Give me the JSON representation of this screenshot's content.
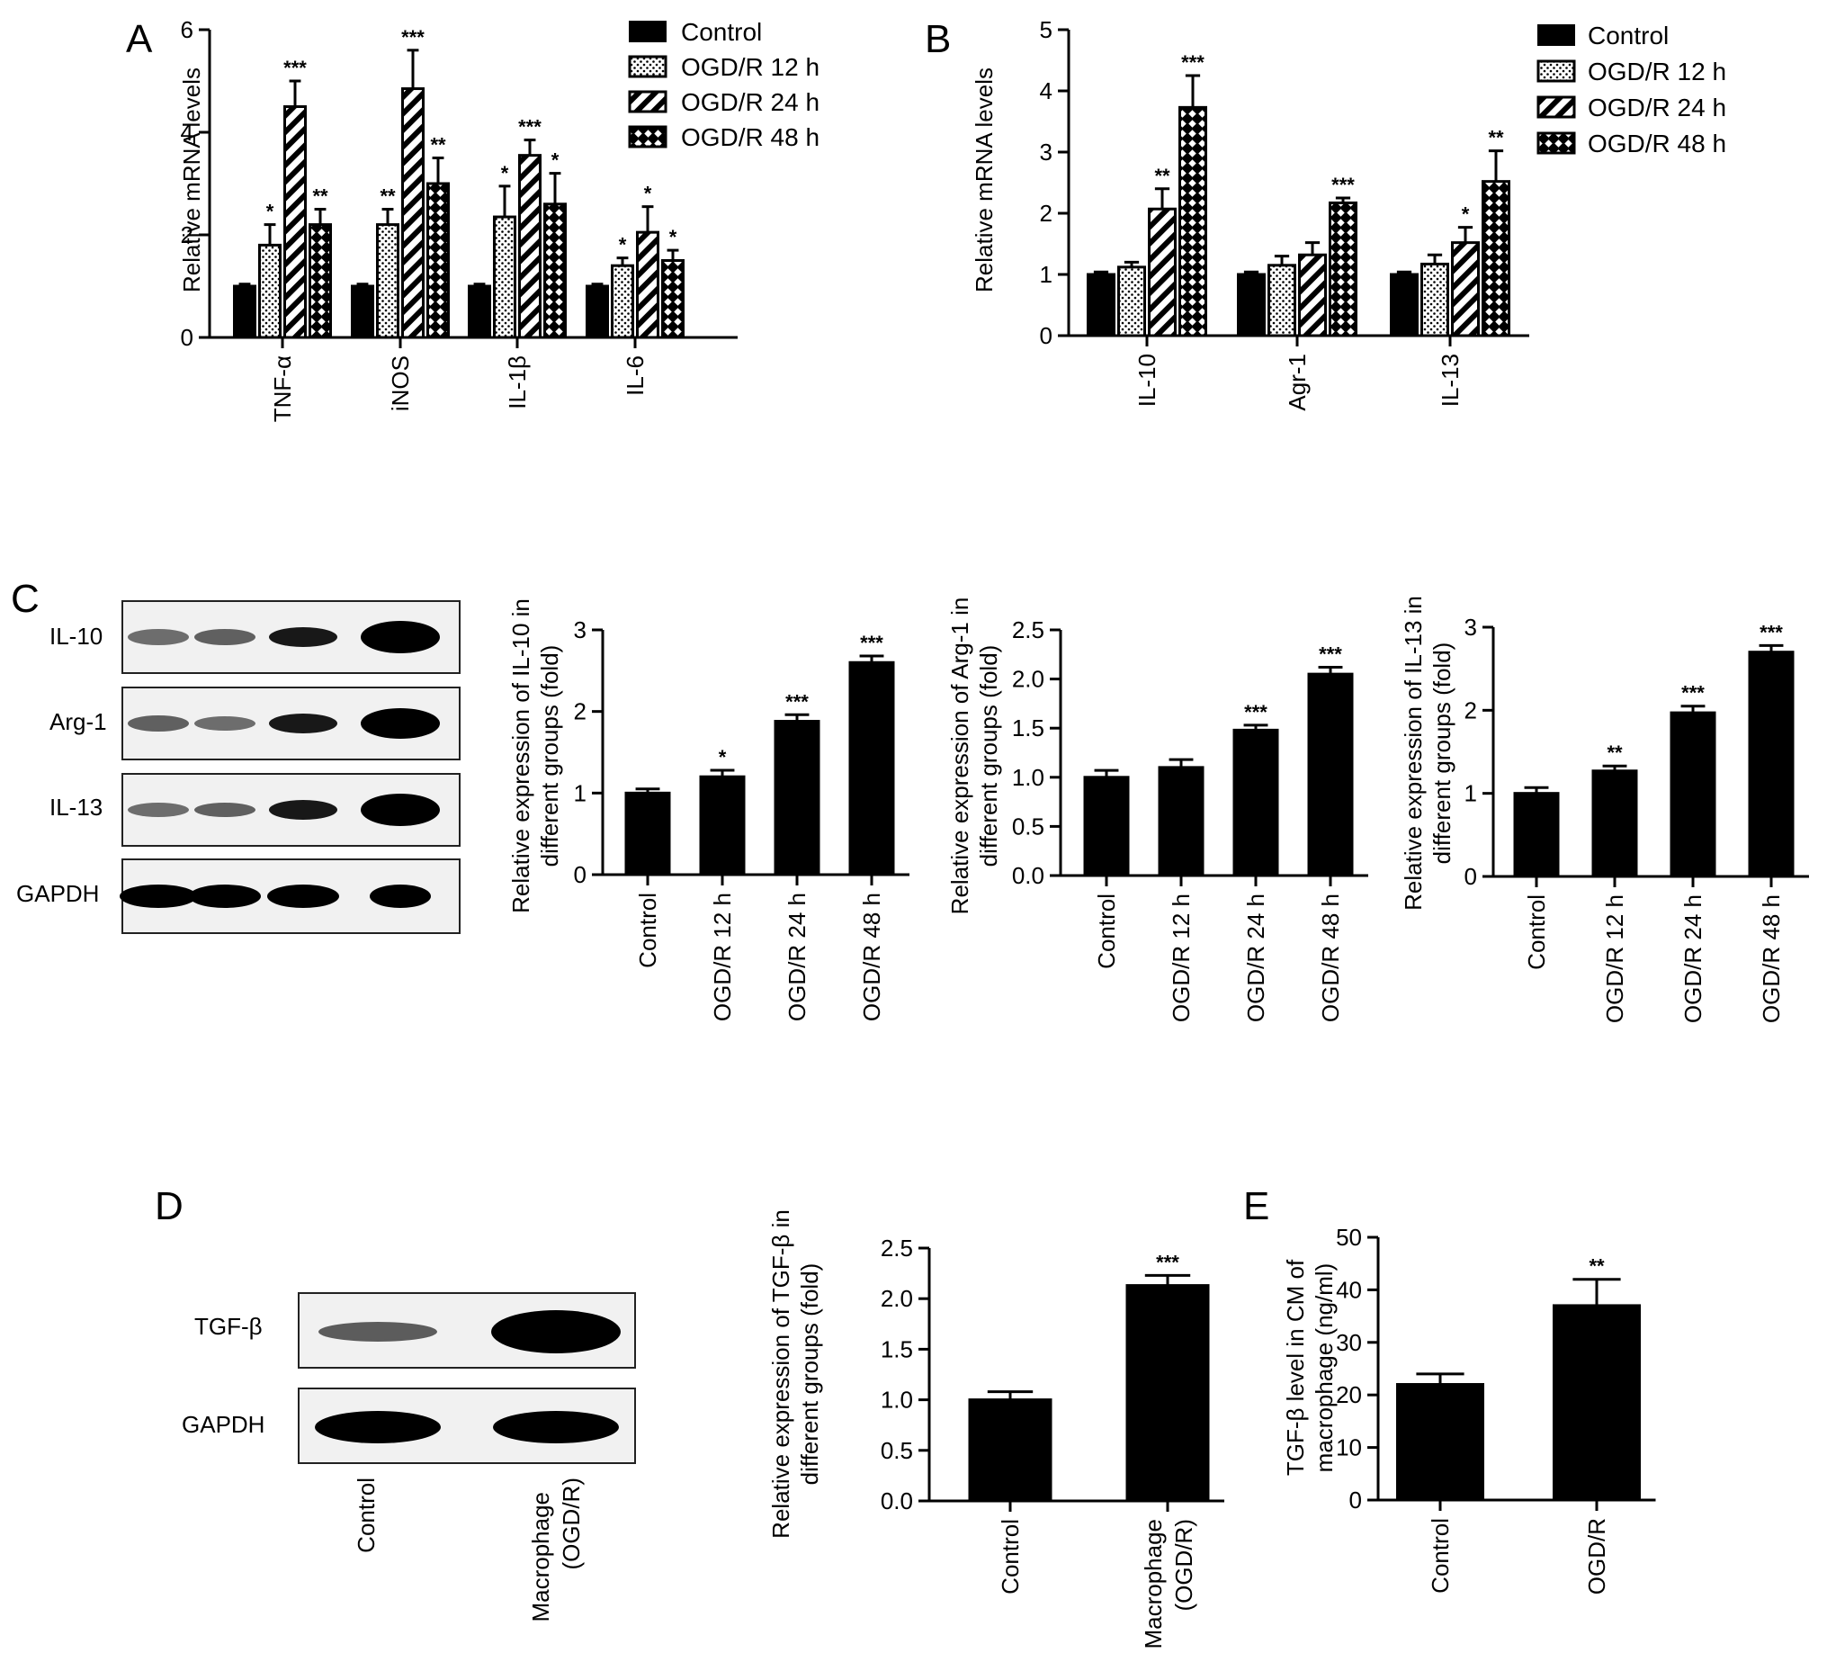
{
  "panel_labels": [
    "A",
    "B",
    "C",
    "D",
    "E"
  ],
  "legend": [
    "Control",
    "OGD/R 12 h",
    "OGD/R 24 h",
    "OGD/R 48 h"
  ],
  "blots": {
    "C": {
      "rows": [
        "IL-10",
        "Arg-1",
        "IL-13",
        "GAPDH"
      ]
    },
    "D": {
      "rows": [
        "TGF-β",
        "GAPDH"
      ],
      "lanes": [
        "Control",
        "Macrophage\n(OGD/R)"
      ]
    }
  },
  "chart_data": [
    {
      "id": "A",
      "type": "bar",
      "ylabel": "Relative mRNA levels",
      "xlabel": "",
      "ylim": [
        0,
        6
      ],
      "yticks": [
        0,
        2,
        4,
        6
      ],
      "categories": [
        "TNF-α",
        "iNOS",
        "IL-1β",
        "IL-6"
      ],
      "series": [
        {
          "name": "Control",
          "values": [
            1.0,
            1.0,
            1.0,
            1.0
          ],
          "errors": [
            0.04,
            0.04,
            0.04,
            0.04
          ],
          "sig": [
            "",
            "",
            "",
            ""
          ]
        },
        {
          "name": "OGD/R 12 h",
          "values": [
            1.8,
            2.2,
            2.35,
            1.4
          ],
          "errors": [
            0.4,
            0.3,
            0.6,
            0.15
          ],
          "sig": [
            "*",
            "**",
            "*",
            "*"
          ]
        },
        {
          "name": "OGD/R 24 h",
          "values": [
            4.5,
            4.85,
            3.55,
            2.05
          ],
          "errors": [
            0.5,
            0.75,
            0.3,
            0.5
          ],
          "sig": [
            "***",
            "***",
            "***",
            "*"
          ]
        },
        {
          "name": "OGD/R 48 h",
          "values": [
            2.2,
            3.0,
            2.6,
            1.5
          ],
          "errors": [
            0.3,
            0.5,
            0.6,
            0.2
          ],
          "sig": [
            "**",
            "**",
            "*",
            "*"
          ]
        }
      ]
    },
    {
      "id": "B",
      "type": "bar",
      "ylabel": "Relative mRNA levels",
      "xlabel": "",
      "ylim": [
        0,
        5
      ],
      "yticks": [
        0,
        1,
        2,
        3,
        4,
        5
      ],
      "categories": [
        "IL-10",
        "Agr-1",
        "IL-13"
      ],
      "series": [
        {
          "name": "Control",
          "values": [
            1.0,
            1.0,
            1.0
          ],
          "errors": [
            0.04,
            0.04,
            0.04
          ],
          "sig": [
            "",
            "",
            ""
          ]
        },
        {
          "name": "OGD/R 12 h",
          "values": [
            1.12,
            1.15,
            1.17
          ],
          "errors": [
            0.08,
            0.15,
            0.15
          ],
          "sig": [
            "",
            "",
            ""
          ]
        },
        {
          "name": "OGD/R 24 h",
          "values": [
            2.07,
            1.32,
            1.52
          ],
          "errors": [
            0.33,
            0.2,
            0.25
          ],
          "sig": [
            "**",
            "",
            "*"
          ]
        },
        {
          "name": "OGD/R 48 h",
          "values": [
            3.73,
            2.17,
            2.52
          ],
          "errors": [
            0.52,
            0.08,
            0.5
          ],
          "sig": [
            "***",
            "***",
            "**"
          ]
        }
      ]
    },
    {
      "id": "C1",
      "type": "bar",
      "ylabel": "Relative expression of IL-10 in\ndifferent groups (fold)",
      "xlabel": "",
      "ylim": [
        0,
        3
      ],
      "yticks": [
        "0",
        "1",
        "2",
        "3"
      ],
      "categories": [
        "Control",
        "OGD/R 12 h",
        "OGD/R 24 h",
        "OGD/R 48 h"
      ],
      "values": [
        1.0,
        1.2,
        1.88,
        2.6
      ],
      "errors": [
        0.05,
        0.08,
        0.08,
        0.08
      ],
      "sig": [
        "",
        "*",
        "***",
        "***"
      ]
    },
    {
      "id": "C2",
      "type": "bar",
      "ylabel": "Relative expression of Arg-1 in\ndifferent groups (fold)",
      "xlabel": "",
      "ylim": [
        0,
        2.5
      ],
      "yticks": [
        "0.0",
        "0.5",
        "1.0",
        "1.5",
        "2.0",
        "2.5"
      ],
      "categories": [
        "Control",
        "OGD/R 12 h",
        "OGD/R 24 h",
        "OGD/R 48 h"
      ],
      "values": [
        1.0,
        1.1,
        1.48,
        2.05
      ],
      "errors": [
        0.07,
        0.08,
        0.05,
        0.07
      ],
      "sig": [
        "",
        "",
        "***",
        "***"
      ]
    },
    {
      "id": "C3",
      "type": "bar",
      "ylabel": "Relative expression of IL-13 in\ndifferent groups (fold)",
      "xlabel": "",
      "ylim": [
        0,
        3
      ],
      "yticks": [
        "0",
        "1",
        "2",
        "3"
      ],
      "categories": [
        "Control",
        "OGD/R 12 h",
        "OGD/R 24 h",
        "OGD/R 48 h"
      ],
      "values": [
        1.0,
        1.27,
        1.97,
        2.7
      ],
      "errors": [
        0.07,
        0.06,
        0.08,
        0.08
      ],
      "sig": [
        "",
        "**",
        "***",
        "***"
      ]
    },
    {
      "id": "D",
      "type": "bar",
      "ylabel": "Relative expression of TGF-β in\ndifferent groups (fold)",
      "xlabel": "",
      "ylim": [
        0,
        2.5
      ],
      "yticks": [
        "0.0",
        "0.5",
        "1.0",
        "1.5",
        "2.0",
        "2.5"
      ],
      "categories": [
        "Control",
        "Macrophage\n(OGD/R)"
      ],
      "values": [
        1.0,
        2.13
      ],
      "errors": [
        0.08,
        0.1
      ],
      "sig": [
        "",
        "***"
      ]
    },
    {
      "id": "E",
      "type": "bar",
      "ylabel": "TGF-β level in CM of\nmacrophage (ng/ml)",
      "xlabel": "",
      "ylim": [
        0,
        50
      ],
      "yticks": [
        "0",
        "10",
        "20",
        "30",
        "40",
        "50"
      ],
      "categories": [
        "Control",
        "OGD/R"
      ],
      "values": [
        22.0,
        37.0
      ],
      "errors": [
        2.0,
        5.0
      ],
      "sig": [
        "",
        "**"
      ]
    }
  ]
}
